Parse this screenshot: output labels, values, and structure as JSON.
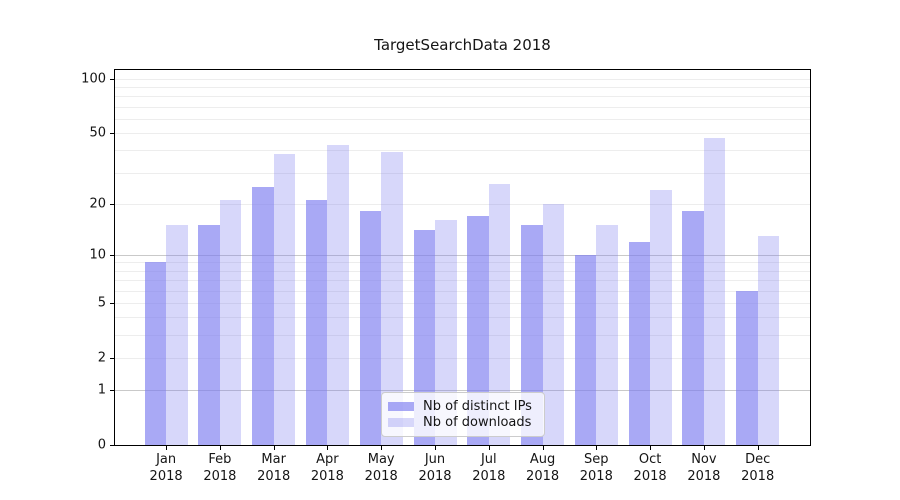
{
  "chart_data": {
    "type": "bar",
    "title": "TargetSearchData 2018",
    "categories": [
      "Jan",
      "Feb",
      "Mar",
      "Apr",
      "May",
      "Jun",
      "Jul",
      "Aug",
      "Sep",
      "Oct",
      "Nov",
      "Dec"
    ],
    "year_label": "2018",
    "series": [
      {
        "name": "Nb of distinct IPs",
        "color": "rgba(123,123,240,0.65)",
        "values": [
          9,
          15,
          25,
          21,
          18,
          14,
          17,
          15,
          10,
          12,
          18,
          6
        ]
      },
      {
        "name": "Nb of downloads",
        "color": "rgba(123,123,240,0.30)",
        "values": [
          15,
          21,
          38,
          43,
          39,
          16,
          26,
          20,
          15,
          24,
          47,
          13
        ]
      }
    ],
    "yscale": "log1p",
    "ylim": [
      0,
      112
    ],
    "y_ticks": [
      0,
      1,
      2,
      5,
      10,
      20,
      50,
      100
    ],
    "major_gridlines": [
      1,
      10
    ],
    "minor_gridlines": [
      2,
      3,
      4,
      5,
      6,
      7,
      8,
      9,
      20,
      30,
      40,
      50,
      60,
      70,
      80,
      90,
      100
    ],
    "grid": true,
    "legend_position": "lower center"
  },
  "colors": {
    "bar_dark": "rgba(123,123,240,0.65)",
    "bar_light": "rgba(123,123,240,0.30)",
    "major_grid": "#c9c9c9",
    "minor_grid": "#ededed",
    "spine": "#000000",
    "legend_border": "#cccccc",
    "legend_background": "rgba(255,255,255,0.8)",
    "text": "#151515"
  }
}
